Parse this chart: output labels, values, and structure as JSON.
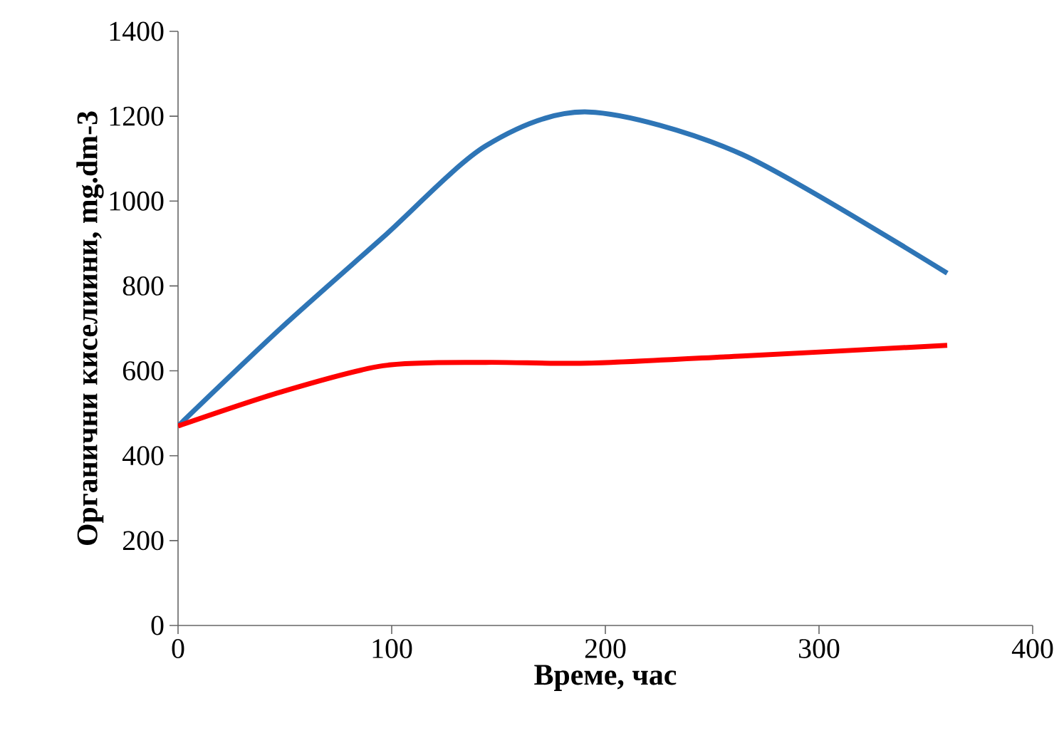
{
  "chart_data": {
    "type": "line",
    "xlabel": "Време, час",
    "ylabel": "Органични киселиини, mg.dm-3",
    "x": [
      0,
      48,
      96,
      144,
      192,
      264,
      360
    ],
    "series": [
      {
        "color": "#2e75b6",
        "values": [
          470,
          700,
          915,
          1130,
          1210,
          1110,
          830
        ]
      },
      {
        "color": "#ff0000",
        "values": [
          470,
          550,
          612,
          620,
          618,
          635,
          660
        ]
      }
    ],
    "xlim": [
      0,
      400
    ],
    "xticks": [
      0,
      100,
      200,
      300,
      400
    ],
    "ylim": [
      0,
      1400
    ],
    "yticks": [
      0,
      200,
      400,
      600,
      800,
      1000,
      1200,
      1400
    ]
  }
}
